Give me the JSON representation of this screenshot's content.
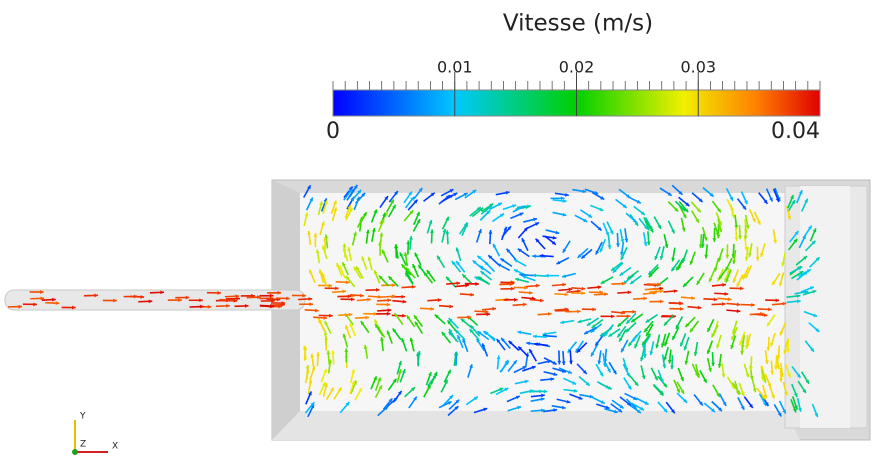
{
  "colorbar": {
    "title": "Vitesse (m/s)",
    "range": [
      0,
      0.04
    ],
    "ticks": [
      0.01,
      0.02,
      0.03
    ]
  },
  "axes": {
    "x": "X",
    "y": "Y",
    "z": "Z"
  }
}
